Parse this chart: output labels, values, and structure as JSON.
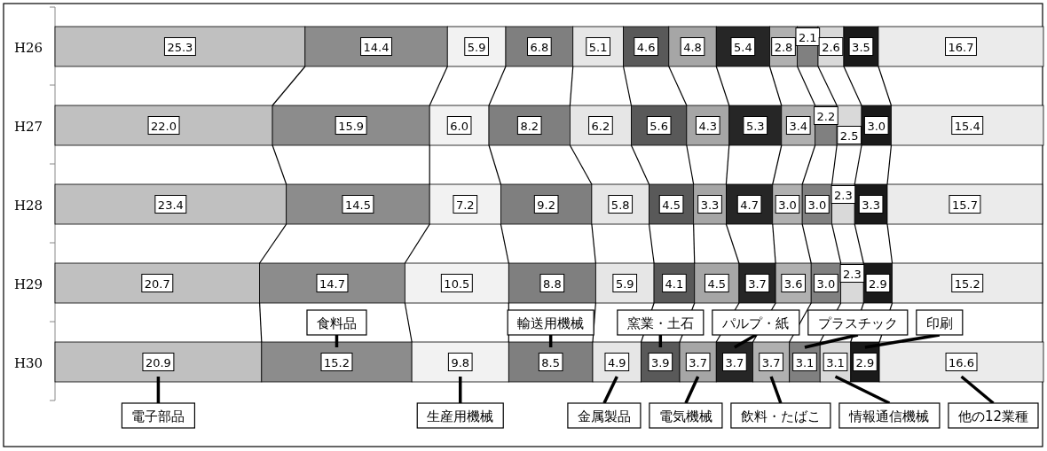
{
  "chart_data": {
    "type": "bar",
    "orientation": "horizontal",
    "stacked": true,
    "legend": "bottom",
    "tick_labels": "y",
    "xlim": [
      0,
      100
    ],
    "categories": [
      "H26",
      "H27",
      "H28",
      "H29",
      "H30"
    ],
    "series": [
      {
        "name": "電子部品",
        "color": "#c0c0c0",
        "values": [
          25.3,
          22.0,
          23.4,
          20.7,
          20.9
        ],
        "value_labels": [
          "25.3",
          "22.0",
          "23.4",
          "20.7",
          "20.9"
        ]
      },
      {
        "name": "食料品",
        "color": "#8c8c8c",
        "values": [
          14.4,
          15.9,
          14.5,
          14.7,
          15.2
        ],
        "value_labels": [
          "14.4",
          "15.9",
          "14.5",
          "14.7",
          "15.2"
        ]
      },
      {
        "name": "生産用機械",
        "color": "#f2f2f2",
        "values": [
          5.9,
          6.0,
          7.2,
          10.5,
          9.8
        ],
        "value_labels": [
          "5.9",
          "6.0",
          "7.2",
          "10.5",
          "9.8"
        ]
      },
      {
        "name": "輸送用機械",
        "color": "#7f7f7f",
        "values": [
          6.8,
          8.2,
          9.2,
          8.8,
          8.5
        ],
        "value_labels": [
          "6.8",
          "8.2",
          "9.2",
          "8.8",
          "8.5"
        ]
      },
      {
        "name": "金属製品",
        "color": "#e6e6e6",
        "values": [
          5.1,
          6.2,
          5.8,
          5.9,
          4.9
        ],
        "value_labels": [
          "5.1",
          "6.2",
          "5.8",
          "5.9",
          "4.9"
        ]
      },
      {
        "name": "窯業・土石",
        "color": "#595959",
        "values": [
          4.6,
          5.6,
          4.5,
          4.1,
          3.9
        ],
        "value_labels": [
          "4.6",
          "5.6",
          "4.5",
          "4.1",
          "3.9"
        ]
      },
      {
        "name": "電気機械",
        "color": "#a6a6a6",
        "values": [
          4.8,
          4.3,
          3.3,
          4.5,
          3.7
        ],
        "value_labels": [
          "4.8",
          "4.3",
          "3.3",
          "4.5",
          "3.7"
        ]
      },
      {
        "name": "パルプ・紙",
        "color": "#262626",
        "values": [
          5.4,
          5.3,
          4.7,
          3.7,
          3.7
        ],
        "value_labels": [
          "5.4",
          "5.3",
          "4.7",
          "3.7",
          "3.7"
        ]
      },
      {
        "name": "飲料・たばこ",
        "color": "#b0b0b0",
        "values": [
          2.8,
          3.4,
          3.0,
          3.6,
          3.7
        ],
        "value_labels": [
          "2.8",
          "3.4",
          "3.0",
          "3.6",
          "3.7"
        ]
      },
      {
        "name": "プラスチック",
        "color": "#808080",
        "values": [
          2.1,
          2.2,
          3.0,
          3.0,
          3.1
        ],
        "value_labels": [
          "2.1",
          "2.2",
          "3.0",
          "3.0",
          "3.1"
        ]
      },
      {
        "name": "情報通信機械",
        "color": "#d9d9d9",
        "values": [
          2.6,
          2.5,
          2.3,
          2.3,
          3.1
        ],
        "value_labels": [
          "2.6",
          "2.5",
          "2.3",
          "2.3",
          "3.1"
        ]
      },
      {
        "name": "印刷",
        "color": "#1a1a1a",
        "values": [
          3.5,
          3.0,
          3.3,
          2.9,
          2.9
        ],
        "value_labels": [
          "3.5",
          "3.0",
          "3.3",
          "2.9",
          "2.9"
        ]
      },
      {
        "name": "他の12業種",
        "color": "#ebebeb",
        "values": [
          16.7,
          15.4,
          15.7,
          15.2,
          16.6
        ],
        "value_labels": [
          "16.7",
          "15.4",
          "15.7",
          "15.2",
          "16.6"
        ]
      }
    ]
  }
}
